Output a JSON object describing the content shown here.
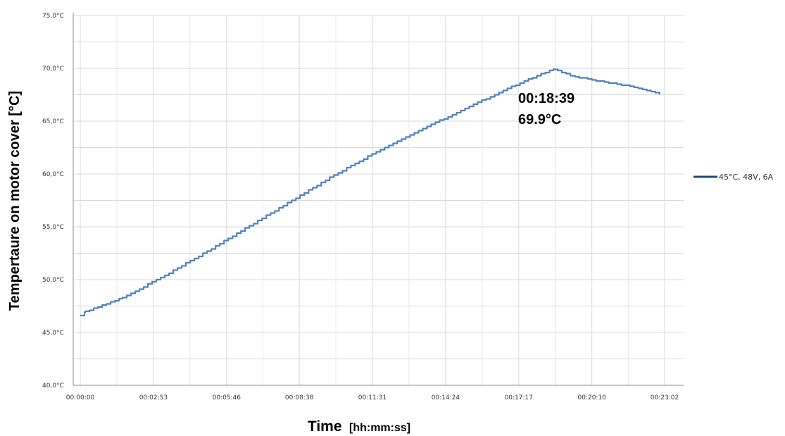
{
  "chart_data": {
    "type": "line",
    "title": "",
    "xlabel": "Time",
    "xlabel_unit": "[hh:mm:ss]",
    "ylabel": "Tempertaure on motor cover  [°C]",
    "xlim_seconds": [
      0,
      1382
    ],
    "ylim": [
      40,
      75
    ],
    "x_ticks": [
      "00:00:00",
      "00:02:53",
      "00:05:46",
      "00:08:38",
      "00:11:31",
      "00:14:24",
      "00:17:17",
      "00:20:10",
      "00:23:02"
    ],
    "y_ticks": [
      "40,0°C",
      "45,0°C",
      "50,0°C",
      "55,0°C",
      "60,0°C",
      "65,0°C",
      "70,0°C",
      "75,0°C"
    ],
    "grid": true,
    "legend_position": "right",
    "series": [
      {
        "name": "45°C, 48V, 6A",
        "color": "#4F81BD",
        "x": [
          "00:00:00",
          "00:00:12",
          "00:01:40",
          "00:03:20",
          "00:05:00",
          "00:06:40",
          "00:08:20",
          "00:10:00",
          "00:11:40",
          "00:13:20",
          "00:15:00",
          "00:16:40",
          "00:18:00",
          "00:18:39",
          "00:19:20",
          "00:20:10",
          "00:21:40",
          "00:22:52"
        ],
        "y": [
          46.6,
          47.0,
          48.3,
          50.4,
          52.7,
          55.1,
          57.5,
          59.9,
          62.1,
          64.1,
          66.0,
          67.9,
          69.3,
          69.9,
          69.3,
          68.9,
          68.3,
          67.6
        ]
      }
    ],
    "annotation": {
      "time": "00:18:39",
      "temp": "69.9°C"
    }
  }
}
